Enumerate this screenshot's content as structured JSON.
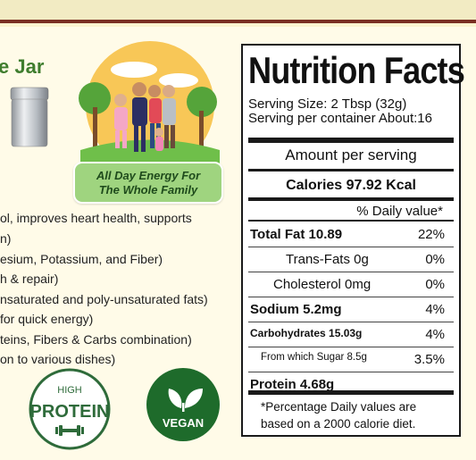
{
  "left": {
    "jar_title": "e Jar",
    "energy_badge": {
      "line1": "All Day Energy For",
      "line2": "The Whole Family"
    },
    "benefits": [
      "ol, improves heart health, supports",
      "n)",
      "esium, Potassium, and Fiber)",
      "h & repair)",
      "nsaturated and poly-unsaturated fats)",
      " for quick energy)",
      "teins, Fibers & Carbs combination)",
      "on to various dishes)"
    ],
    "protein_badge": {
      "top": "HIGH",
      "main": "PROTEIN"
    },
    "vegan_badge": {
      "label": "VEGAN"
    }
  },
  "nutrition": {
    "title": "Nutrition Facts",
    "serving_size": "Serving Size: 2 Tbsp (32g)",
    "servings_per_container": "Serving per container About:16",
    "amount_per_serving": "Amount per serving",
    "calories": "Calories 97.92 Kcal",
    "daily_value_header": "% Daily value*",
    "rows": [
      {
        "label": "Total Fat 10.89",
        "value": "22%"
      },
      {
        "label": "Trans-Fats 0g",
        "value": "0%"
      },
      {
        "label": "Cholesterol 0mg",
        "value": "0%"
      },
      {
        "label": "Sodium 5.2mg",
        "value": "4%"
      },
      {
        "label": "Carbohydrates 15.03g",
        "value": "4%"
      },
      {
        "label": "From which Sugar 8.5g",
        "value": "3.5%"
      },
      {
        "label": "Protein 4.68g",
        "value": ""
      }
    ],
    "footnote_line1": "*Percentage Daily values are",
    "footnote_line2": "based on a 2000 calorie diet."
  },
  "colors": {
    "stripe": "#7a2f22",
    "green": "#3f7d2e",
    "badge_green": "#9fd47f",
    "background": "#fffbe8"
  }
}
